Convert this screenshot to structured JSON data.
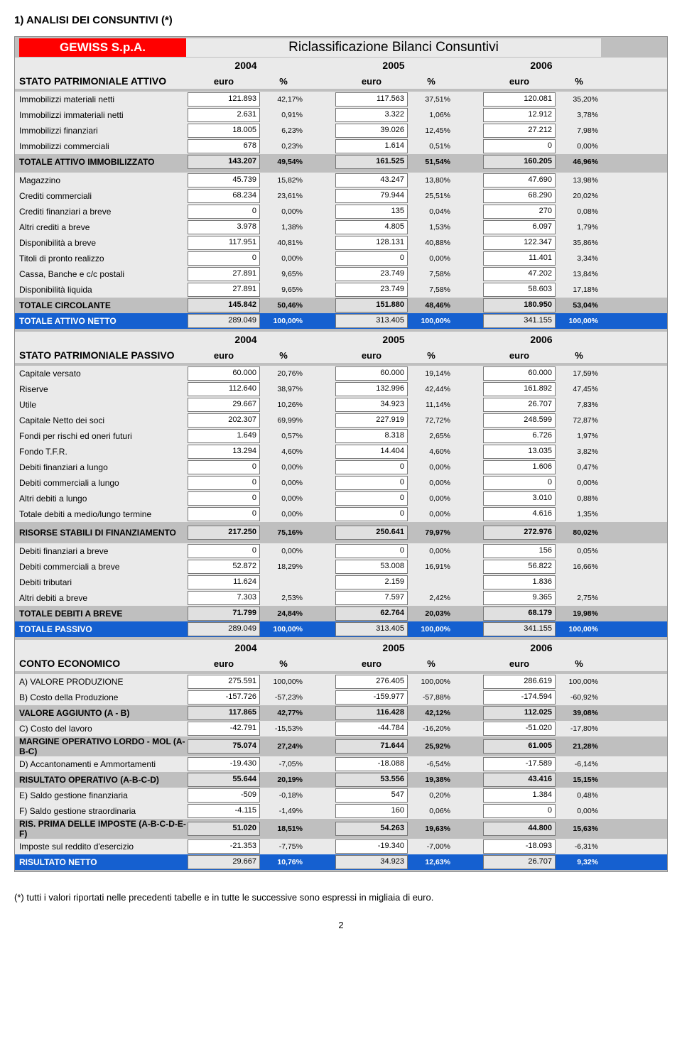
{
  "page_title": "1) ANALISI DEI CONSUNTIVI (*)",
  "company": "GEWISS S.p.A.",
  "main_title": "Riclassificazione Bilanci Consuntivi",
  "years": [
    "2004",
    "2005",
    "2006"
  ],
  "col_euro": "euro",
  "col_pct": "%",
  "sections": [
    {
      "header": "STATO PATRIMONIALE ATTIVO",
      "groups": [
        {
          "rows": [
            {
              "type": "normal",
              "label": "Immobilizzi materiali netti",
              "v": [
                "121.893",
                "42,17%",
                "117.563",
                "37,51%",
                "120.081",
                "35,20%"
              ]
            },
            {
              "type": "normal",
              "label": "Immobilizzi immateriali netti",
              "v": [
                "2.631",
                "0,91%",
                "3.322",
                "1,06%",
                "12.912",
                "3,78%"
              ]
            },
            {
              "type": "normal",
              "label": "Immobilizzi finanziari",
              "v": [
                "18.005",
                "6,23%",
                "39.026",
                "12,45%",
                "27.212",
                "7,98%"
              ]
            },
            {
              "type": "normal",
              "label": "Immobilizzi commerciali",
              "v": [
                "678",
                "0,23%",
                "1.614",
                "0,51%",
                "0",
                "0,00%"
              ]
            },
            {
              "type": "subtotal",
              "label": "TOTALE ATTIVO IMMOBILIZZATO",
              "v": [
                "143.207",
                "49,54%",
                "161.525",
                "51,54%",
                "160.205",
                "46,96%"
              ]
            }
          ]
        },
        {
          "rows": [
            {
              "type": "normal",
              "label": "Magazzino",
              "v": [
                "45.739",
                "15,82%",
                "43.247",
                "13,80%",
                "47.690",
                "13,98%"
              ]
            },
            {
              "type": "normal",
              "label": "Crediti commerciali",
              "v": [
                "68.234",
                "23,61%",
                "79.944",
                "25,51%",
                "68.290",
                "20,02%"
              ]
            },
            {
              "type": "normal",
              "label": "Crediti finanziari a breve",
              "v": [
                "0",
                "0,00%",
                "135",
                "0,04%",
                "270",
                "0,08%"
              ]
            },
            {
              "type": "normal",
              "label": "Altri crediti a breve",
              "v": [
                "3.978",
                "1,38%",
                "4.805",
                "1,53%",
                "6.097",
                "1,79%"
              ]
            },
            {
              "type": "normal",
              "label": "Disponibilità a breve",
              "v": [
                "117.951",
                "40,81%",
                "128.131",
                "40,88%",
                "122.347",
                "35,86%"
              ]
            },
            {
              "type": "normal",
              "label": "Titoli di pronto realizzo",
              "v": [
                "0",
                "0,00%",
                "0",
                "0,00%",
                "11.401",
                "3,34%"
              ]
            },
            {
              "type": "normal",
              "label": "Cassa, Banche e c/c postali",
              "v": [
                "27.891",
                "9,65%",
                "23.749",
                "7,58%",
                "47.202",
                "13,84%"
              ]
            },
            {
              "type": "normal",
              "label": "Disponibilità liquida",
              "v": [
                "27.891",
                "9,65%",
                "23.749",
                "7,58%",
                "58.603",
                "17,18%"
              ]
            },
            {
              "type": "subtotal",
              "label": "TOTALE CIRCOLANTE",
              "v": [
                "145.842",
                "50,46%",
                "151.880",
                "48,46%",
                "180.950",
                "53,04%"
              ]
            },
            {
              "type": "total",
              "label": "TOTALE ATTIVO NETTO",
              "v": [
                "289.049",
                "100,00%",
                "313.405",
                "100,00%",
                "341.155",
                "100,00%"
              ]
            }
          ]
        }
      ]
    },
    {
      "header": "STATO PATRIMONIALE PASSIVO",
      "groups": [
        {
          "rows": [
            {
              "type": "normal",
              "label": "Capitale versato",
              "v": [
                "60.000",
                "20,76%",
                "60.000",
                "19,14%",
                "60.000",
                "17,59%"
              ]
            },
            {
              "type": "normal",
              "label": "Riserve",
              "v": [
                "112.640",
                "38,97%",
                "132.996",
                "42,44%",
                "161.892",
                "47,45%"
              ]
            },
            {
              "type": "normal",
              "label": "Utile",
              "v": [
                "29.667",
                "10,26%",
                "34.923",
                "11,14%",
                "26.707",
                "7,83%"
              ]
            },
            {
              "type": "normal",
              "label": "Capitale Netto dei soci",
              "v": [
                "202.307",
                "69,99%",
                "227.919",
                "72,72%",
                "248.599",
                "72,87%"
              ]
            },
            {
              "type": "normal",
              "label": "Fondi per rischi ed oneri futuri",
              "v": [
                "1.649",
                "0,57%",
                "8.318",
                "2,65%",
                "6.726",
                "1,97%"
              ]
            },
            {
              "type": "normal",
              "label": "Fondo T.F.R.",
              "v": [
                "13.294",
                "4,60%",
                "14.404",
                "4,60%",
                "13.035",
                "3,82%"
              ]
            },
            {
              "type": "normal",
              "label": "Debiti finanziari a lungo",
              "v": [
                "0",
                "0,00%",
                "0",
                "0,00%",
                "1.606",
                "0,47%"
              ]
            },
            {
              "type": "normal",
              "label": "Debiti commerciali a lungo",
              "v": [
                "0",
                "0,00%",
                "0",
                "0,00%",
                "0",
                "0,00%"
              ]
            },
            {
              "type": "normal",
              "label": "Altri debiti a lungo",
              "v": [
                "0",
                "0,00%",
                "0",
                "0,00%",
                "3.010",
                "0,88%"
              ]
            },
            {
              "type": "normal",
              "label": "Totale debiti a medio/lungo termine",
              "v": [
                "0",
                "0,00%",
                "0",
                "0,00%",
                "4.616",
                "1,35%"
              ]
            }
          ]
        },
        {
          "rows": [
            {
              "type": "subtotal",
              "label": "RISORSE STABILI DI FINANZIAMENTO",
              "v": [
                "217.250",
                "75,16%",
                "250.641",
                "79,97%",
                "272.976",
                "80,02%"
              ]
            }
          ]
        },
        {
          "rows": [
            {
              "type": "normal",
              "label": "Debiti finanziari a breve",
              "v": [
                "0",
                "0,00%",
                "0",
                "0,00%",
                "156",
                "0,05%"
              ]
            },
            {
              "type": "normal",
              "label": "Debiti commerciali a breve",
              "v": [
                "52.872",
                "18,29%",
                "53.008",
                "16,91%",
                "56.822",
                "16,66%"
              ]
            },
            {
              "type": "normal",
              "label": "Debiti tributari",
              "v": [
                "11.624",
                "",
                "2.159",
                "",
                "1.836",
                ""
              ]
            },
            {
              "type": "normal",
              "label": "Altri debiti a breve",
              "v": [
                "7.303",
                "2,53%",
                "7.597",
                "2,42%",
                "9.365",
                "2,75%"
              ]
            },
            {
              "type": "subtotal",
              "label": "TOTALE DEBITI A BREVE",
              "v": [
                "71.799",
                "24,84%",
                "62.764",
                "20,03%",
                "68.179",
                "19,98%"
              ]
            },
            {
              "type": "total",
              "label": "TOTALE PASSIVO",
              "v": [
                "289.049",
                "100,00%",
                "313.405",
                "100,00%",
                "341.155",
                "100,00%"
              ]
            }
          ]
        }
      ]
    },
    {
      "header": "CONTO ECONOMICO",
      "groups": [
        {
          "rows": [
            {
              "type": "normal",
              "label": "A) VALORE PRODUZIONE",
              "v": [
                "275.591",
                "100,00%",
                "276.405",
                "100,00%",
                "286.619",
                "100,00%"
              ]
            },
            {
              "type": "normal",
              "label": "B) Costo della Produzione",
              "v": [
                "-157.726",
                "-57,23%",
                "-159.977",
                "-57,88%",
                "-174.594",
                "-60,92%"
              ]
            },
            {
              "type": "subtotal",
              "label": "VALORE AGGIUNTO  (A - B)",
              "v": [
                "117.865",
                "42,77%",
                "116.428",
                "42,12%",
                "112.025",
                "39,08%"
              ]
            },
            {
              "type": "normal",
              "label": "C) Costo del lavoro",
              "v": [
                "-42.791",
                "-15,53%",
                "-44.784",
                "-16,20%",
                "-51.020",
                "-17,80%"
              ]
            },
            {
              "type": "subtotal",
              "label": "MARGINE OPERATIVO LORDO - MOL  (A-B-C)",
              "v": [
                "75.074",
                "27,24%",
                "71.644",
                "25,92%",
                "61.005",
                "21,28%"
              ]
            },
            {
              "type": "normal",
              "label": "D) Accantonamenti e Ammortamenti",
              "v": [
                "-19.430",
                "-7,05%",
                "-18.088",
                "-6,54%",
                "-17.589",
                "-6,14%"
              ]
            },
            {
              "type": "subtotal",
              "label": "RISULTATO OPERATIVO (A-B-C-D)",
              "v": [
                "55.644",
                "20,19%",
                "53.556",
                "19,38%",
                "43.416",
                "15,15%"
              ]
            },
            {
              "type": "normal",
              "label": "E) Saldo gestione finanziaria",
              "v": [
                "-509",
                "-0,18%",
                "547",
                "0,20%",
                "1.384",
                "0,48%"
              ]
            },
            {
              "type": "normal",
              "label": "F) Saldo gestione straordinaria",
              "v": [
                "-4.115",
                "-1,49%",
                "160",
                "0,06%",
                "0",
                "0,00%"
              ]
            },
            {
              "type": "subtotal",
              "label": "RIS. PRIMA DELLE IMPOSTE (A-B-C-D-E-F)",
              "v": [
                "51.020",
                "18,51%",
                "54.263",
                "19,63%",
                "44.800",
                "15,63%"
              ]
            },
            {
              "type": "normal",
              "label": "Imposte sul reddito d'esercizio",
              "v": [
                "-21.353",
                "-7,75%",
                "-19.340",
                "-7,00%",
                "-18.093",
                "-6,31%"
              ]
            },
            {
              "type": "total",
              "label": "RISULTATO NETTO",
              "v": [
                "29.667",
                "10,76%",
                "34.923",
                "12,63%",
                "26.707",
                "9,32%"
              ]
            }
          ]
        }
      ]
    }
  ],
  "footnote": "(*) tutti i valori riportati nelle precedenti tabelle e in tutte le successive sono espressi in migliaia di euro.",
  "page_number": "2",
  "colors": {
    "header_red": "#ff0000",
    "total_blue": "#1560d0",
    "panel_gray": "#bfbfbf",
    "row_gray": "#eaeaea"
  }
}
